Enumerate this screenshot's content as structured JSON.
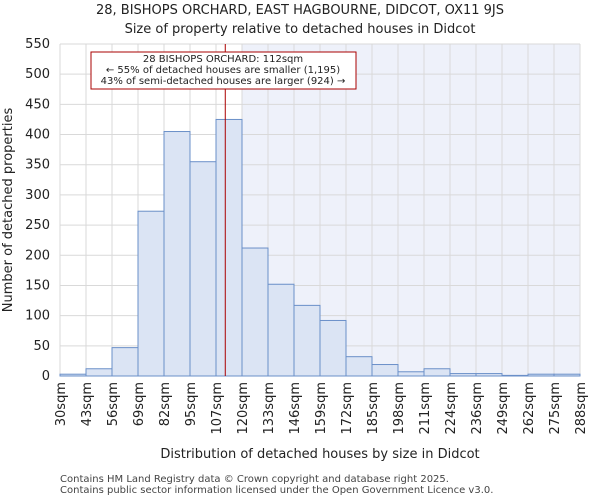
{
  "chart_data": {
    "type": "bar",
    "title_line1": "28, BISHOPS ORCHARD, EAST HAGBOURNE, DIDCOT, OX11 9JS",
    "title_line2": "Size of property relative to detached houses in Didcot",
    "xlabel": "Distribution of detached houses by size in Didcot",
    "ylabel": "Number of detached properties",
    "ylim": [
      0,
      550
    ],
    "yticks": [
      0,
      50,
      100,
      150,
      200,
      250,
      300,
      350,
      400,
      450,
      500,
      550
    ],
    "bin_start": 30,
    "bin_width": 12.9,
    "tick_labels": [
      "30sqm",
      "43sqm",
      "56sqm",
      "69sqm",
      "82sqm",
      "95sqm",
      "107sqm",
      "120sqm",
      "133sqm",
      "146sqm",
      "159sqm",
      "172sqm",
      "185sqm",
      "198sqm",
      "211sqm",
      "224sqm",
      "236sqm",
      "249sqm",
      "262sqm",
      "275sqm",
      "288sqm"
    ],
    "values": [
      3,
      12,
      47,
      273,
      405,
      355,
      425,
      212,
      152,
      117,
      92,
      32,
      19,
      7,
      12,
      4,
      4,
      1,
      3,
      3
    ],
    "highlight_bins": 7,
    "marker_value": 112,
    "annotation": {
      "line1": "28 BISHOPS ORCHARD: 112sqm",
      "line2": "← 55% of detached houses are smaller (1,195)",
      "line3": "43% of semi-detached houses are larger (924) →"
    },
    "colors": {
      "bar_fill": "#dbe4f4",
      "bar_stroke": "#6a8fc8",
      "highlight_bg": "#eef1fa",
      "marker": "#aa0000",
      "grid": "#d9d9d9"
    }
  },
  "footer": {
    "line1": "Contains HM Land Registry data © Crown copyright and database right 2025.",
    "line2": "Contains public sector information licensed under the Open Government Licence v3.0."
  }
}
